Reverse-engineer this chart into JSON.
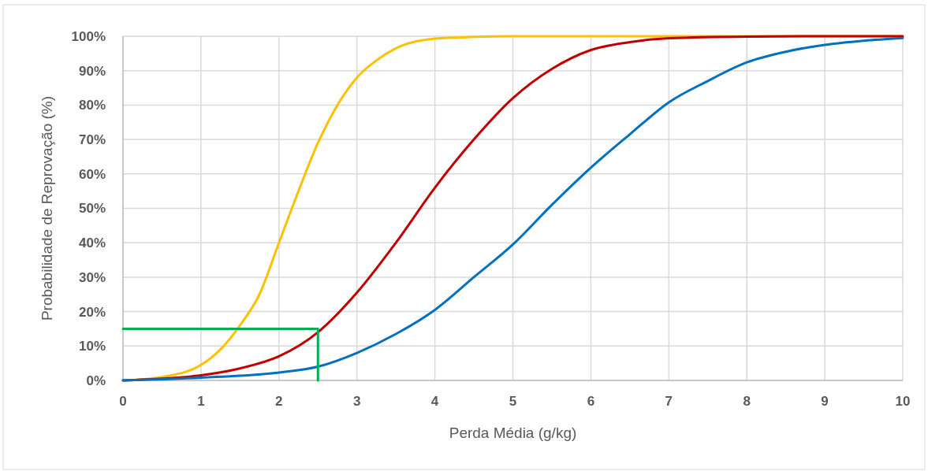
{
  "chart_data": {
    "type": "line",
    "xlabel": "Perda Média (g/kg)",
    "ylabel": "Probabilidade de Reprovação (%)",
    "xlim": [
      0,
      10
    ],
    "xticks": [
      0,
      1,
      2,
      3,
      4,
      5,
      6,
      7,
      8,
      9,
      10
    ],
    "ylim": [
      0,
      100
    ],
    "yticks": [
      {
        "value": 0,
        "label": "0%"
      },
      {
        "value": 10,
        "label": "10%"
      },
      {
        "value": 20,
        "label": "20%"
      },
      {
        "value": 30,
        "label": "30%"
      },
      {
        "value": 40,
        "label": "40%"
      },
      {
        "value": 50,
        "label": "50%"
      },
      {
        "value": 60,
        "label": "60%"
      },
      {
        "value": 70,
        "label": "70%"
      },
      {
        "value": 80,
        "label": "80%"
      },
      {
        "value": 90,
        "label": "90%"
      },
      {
        "value": 100,
        "label": "100%"
      }
    ],
    "grid": true,
    "marker": "none",
    "line_style": "solid",
    "series": [
      {
        "color": "#ffc000",
        "x": [
          0,
          0.5,
          1,
          1.25,
          1.5,
          1.75,
          2,
          2.25,
          2.5,
          2.75,
          3,
          3.25,
          3.5,
          4,
          4.5,
          5,
          6,
          7,
          8,
          9,
          10
        ],
        "values": [
          0,
          1,
          4.5,
          9,
          16,
          25,
          40,
          55,
          69,
          80,
          88,
          93,
          96.5,
          99.3,
          99.8,
          100,
          100,
          100,
          100,
          100,
          100
        ]
      },
      {
        "color": "#c00000",
        "x": [
          0,
          0.5,
          1,
          1.5,
          2,
          2.5,
          3,
          3.5,
          4,
          4.5,
          5,
          5.5,
          6,
          6.5,
          7,
          8,
          9,
          10
        ],
        "values": [
          0,
          0.5,
          1.5,
          3.5,
          7,
          14,
          25.5,
          40,
          56,
          70,
          82,
          90.5,
          96,
          98.3,
          99.4,
          99.9,
          100,
          100
        ]
      },
      {
        "color": "#0070c0",
        "x": [
          0,
          1,
          2,
          2.5,
          3,
          3.5,
          4,
          4.5,
          5,
          5.5,
          6,
          6.5,
          7,
          7.5,
          8,
          8.5,
          9,
          9.5,
          10
        ],
        "values": [
          0,
          0.8,
          2.3,
          4,
          8,
          13.5,
          20.5,
          30,
          39.5,
          51,
          61.8,
          71.5,
          80.8,
          87,
          92.4,
          95.5,
          97.5,
          98.7,
          99.5
        ]
      },
      {
        "color": "#00b050",
        "x": [
          0,
          2.5,
          2.5
        ],
        "values": [
          15,
          15,
          0
        ]
      }
    ]
  }
}
